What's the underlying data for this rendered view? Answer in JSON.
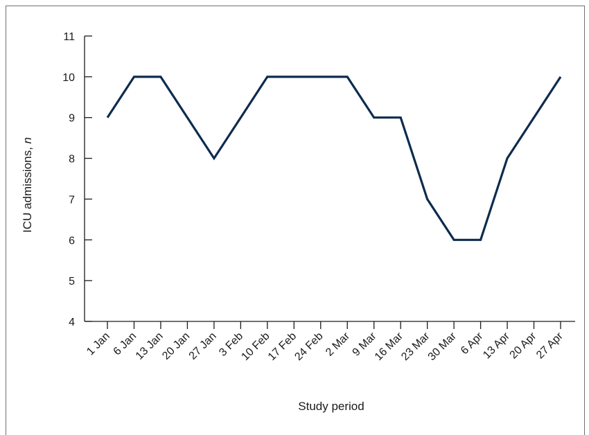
{
  "chart_data": {
    "type": "line",
    "xlabel": "Study period",
    "ylabel_main": "ICU admissions, ",
    "ylabel_italic": "n",
    "ylim": [
      4,
      11
    ],
    "yticks": [
      4,
      5,
      6,
      7,
      8,
      9,
      10,
      11
    ],
    "categories": [
      "1 Jan",
      "6 Jan",
      "13 Jan",
      "20 Jan",
      "27 Jan",
      "3 Feb",
      "10 Feb",
      "17 Feb",
      "24 Feb",
      "2 Mar",
      "9 Mar",
      "16 Mar",
      "23 Mar",
      "30 Mar",
      "6 Apr",
      "13 Apr",
      "20 Apr",
      "27 Apr"
    ],
    "series": [
      {
        "values": [
          9,
          10,
          10,
          9,
          8,
          9,
          10,
          10,
          10,
          10,
          9,
          9,
          7,
          6,
          6,
          8,
          9,
          10
        ]
      }
    ],
    "grid": false,
    "colors": {
      "line": "#0d2b4e",
      "axis": "#1a1a1a"
    }
  }
}
